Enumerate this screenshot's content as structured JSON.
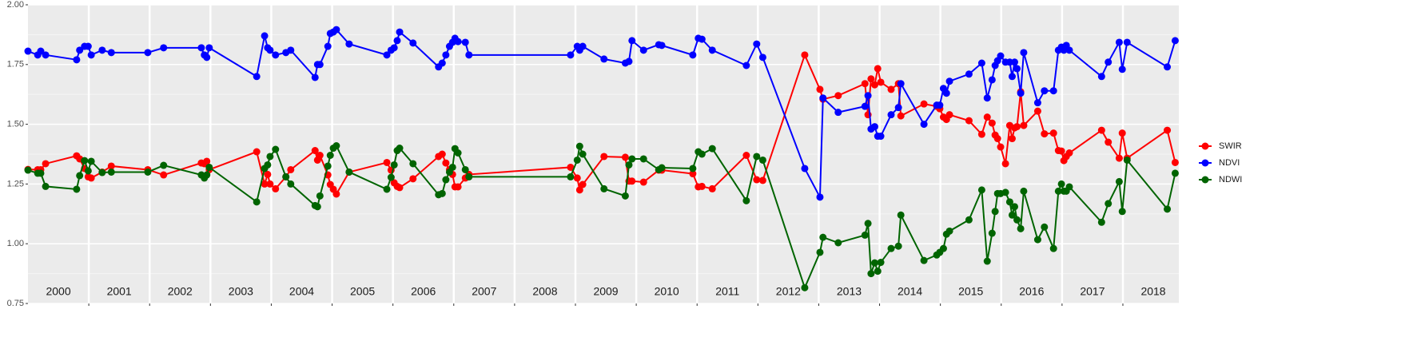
{
  "chart_data": {
    "type": "line",
    "x": [
      2000.0,
      2000.16,
      2000.21,
      2000.29,
      2000.8,
      2000.85,
      2000.93,
      2000.99,
      2001.04,
      2001.22,
      2001.37,
      2001.97,
      2002.23,
      2002.85,
      2002.9,
      2002.94,
      2002.98,
      2003.76,
      2003.89,
      2003.94,
      2003.98,
      2004.07,
      2004.24,
      2004.32,
      2004.72,
      2004.76,
      2004.8,
      2004.93,
      2004.97,
      2005.02,
      2005.07,
      2005.28,
      2005.9,
      2005.97,
      2006.02,
      2006.07,
      2006.11,
      2006.33,
      2006.75,
      2006.81,
      2006.87,
      2006.93,
      2006.98,
      2007.02,
      2007.07,
      2007.19,
      2007.25,
      2008.92,
      2009.03,
      2009.07,
      2009.12,
      2009.47,
      2009.82,
      2009.88,
      2009.93,
      2010.12,
      2010.37,
      2010.42,
      2010.93,
      2011.02,
      2011.08,
      2011.25,
      2011.81,
      2011.98,
      2012.08,
      2012.77,
      2013.02,
      2013.07,
      2013.32,
      2013.76,
      2013.81,
      2013.86,
      2013.92,
      2013.97,
      2014.02,
      2014.19,
      2014.31,
      2014.35,
      2014.73,
      2014.94,
      2014.99,
      2015.05,
      2015.1,
      2015.15,
      2015.47,
      2015.68,
      2015.77,
      2015.85,
      2015.9,
      2015.94,
      2015.99,
      2016.07,
      2016.14,
      2016.18,
      2016.22,
      2016.26,
      2016.32,
      2016.37,
      2016.6,
      2016.71,
      2016.86,
      2016.94,
      2016.99,
      2017.03,
      2017.07,
      2017.12,
      2017.65,
      2017.76,
      2017.94,
      2017.99,
      2018.07,
      2018.73,
      2018.86
    ],
    "series": [
      {
        "name": "SWIR",
        "color": "#ff0000",
        "values": [
          1.311,
          1.31,
          1.31,
          1.335,
          1.368,
          1.355,
          1.315,
          1.28,
          1.275,
          1.3,
          1.325,
          1.31,
          1.288,
          1.338,
          1.335,
          1.345,
          1.31,
          1.385,
          1.25,
          1.29,
          1.25,
          1.23,
          1.28,
          1.31,
          1.39,
          1.35,
          1.37,
          1.288,
          1.248,
          1.228,
          1.208,
          1.3,
          1.34,
          1.308,
          1.255,
          1.24,
          1.235,
          1.272,
          1.365,
          1.375,
          1.338,
          1.31,
          1.29,
          1.238,
          1.238,
          1.275,
          1.29,
          1.32,
          1.275,
          1.225,
          1.248,
          1.365,
          1.362,
          1.262,
          1.262,
          1.258,
          1.308,
          1.308,
          1.293,
          1.238,
          1.24,
          1.23,
          1.37,
          1.268,
          1.265,
          1.79,
          1.646,
          1.605,
          1.62,
          1.67,
          1.54,
          1.69,
          1.665,
          1.733,
          1.676,
          1.646,
          1.67,
          1.535,
          1.585,
          1.575,
          1.565,
          1.53,
          1.52,
          1.54,
          1.515,
          1.458,
          1.53,
          1.505,
          1.455,
          1.44,
          1.405,
          1.335,
          1.495,
          1.44,
          1.485,
          1.49,
          1.636,
          1.495,
          1.555,
          1.46,
          1.463,
          1.39,
          1.388,
          1.348,
          1.365,
          1.38,
          1.475,
          1.425,
          1.358,
          1.463,
          1.358,
          1.475,
          1.34
        ]
      },
      {
        "name": "NDVI",
        "color": "#0000ff",
        "values": [
          1.806,
          1.79,
          1.806,
          1.79,
          1.77,
          1.81,
          1.826,
          1.826,
          1.79,
          1.81,
          1.8,
          1.8,
          1.82,
          1.82,
          1.79,
          1.78,
          1.82,
          1.7,
          1.87,
          1.82,
          1.81,
          1.79,
          1.8,
          1.81,
          1.696,
          1.75,
          1.75,
          1.826,
          1.88,
          1.886,
          1.896,
          1.836,
          1.79,
          1.81,
          1.82,
          1.85,
          1.886,
          1.84,
          1.74,
          1.756,
          1.79,
          1.826,
          1.843,
          1.86,
          1.846,
          1.843,
          1.79,
          1.79,
          1.826,
          1.81,
          1.826,
          1.773,
          1.756,
          1.763,
          1.85,
          1.81,
          1.833,
          1.83,
          1.79,
          1.86,
          1.856,
          1.81,
          1.746,
          1.836,
          1.78,
          1.315,
          1.195,
          1.61,
          1.55,
          1.575,
          1.62,
          1.48,
          1.49,
          1.45,
          1.45,
          1.54,
          1.57,
          1.67,
          1.5,
          1.58,
          1.58,
          1.65,
          1.63,
          1.68,
          1.71,
          1.756,
          1.61,
          1.686,
          1.746,
          1.766,
          1.786,
          1.76,
          1.76,
          1.7,
          1.76,
          1.733,
          1.63,
          1.8,
          1.59,
          1.64,
          1.64,
          1.81,
          1.823,
          1.81,
          1.83,
          1.81,
          1.7,
          1.76,
          1.843,
          1.73,
          1.843,
          1.74,
          1.85
        ]
      },
      {
        "name": "NDWI",
        "color": "#006400",
        "values": [
          1.308,
          1.295,
          1.295,
          1.24,
          1.228,
          1.285,
          1.348,
          1.305,
          1.345,
          1.298,
          1.3,
          1.3,
          1.328,
          1.288,
          1.275,
          1.288,
          1.32,
          1.175,
          1.315,
          1.33,
          1.365,
          1.395,
          1.28,
          1.25,
          1.16,
          1.155,
          1.2,
          1.325,
          1.37,
          1.4,
          1.41,
          1.3,
          1.228,
          1.278,
          1.33,
          1.39,
          1.4,
          1.335,
          1.205,
          1.21,
          1.268,
          1.3,
          1.32,
          1.398,
          1.38,
          1.31,
          1.28,
          1.28,
          1.35,
          1.408,
          1.375,
          1.23,
          1.2,
          1.33,
          1.355,
          1.355,
          1.31,
          1.318,
          1.315,
          1.385,
          1.375,
          1.398,
          1.18,
          1.365,
          1.35,
          0.816,
          0.964,
          1.027,
          1.004,
          1.036,
          1.085,
          0.875,
          0.92,
          0.885,
          0.922,
          0.98,
          0.99,
          1.12,
          0.93,
          0.953,
          0.964,
          0.98,
          1.04,
          1.053,
          1.1,
          1.225,
          0.927,
          1.044,
          1.135,
          1.21,
          1.21,
          1.215,
          1.175,
          1.12,
          1.155,
          1.1,
          1.063,
          1.22,
          1.017,
          1.07,
          0.98,
          1.22,
          1.25,
          1.22,
          1.22,
          1.238,
          1.09,
          1.168,
          1.26,
          1.135,
          1.35,
          1.145,
          1.295
        ]
      }
    ],
    "xlim": [
      2000,
      2018.92
    ],
    "xticks": [
      {
        "value": 2000.5,
        "label": "2000"
      },
      {
        "value": 2001.5,
        "label": "2001"
      },
      {
        "value": 2002.5,
        "label": "2002"
      },
      {
        "value": 2003.5,
        "label": "2003"
      },
      {
        "value": 2004.5,
        "label": "2004"
      },
      {
        "value": 2005.5,
        "label": "2005"
      },
      {
        "value": 2006.5,
        "label": "2006"
      },
      {
        "value": 2007.5,
        "label": "2007"
      },
      {
        "value": 2008.5,
        "label": "2008"
      },
      {
        "value": 2009.5,
        "label": "2009"
      },
      {
        "value": 2010.5,
        "label": "2010"
      },
      {
        "value": 2011.5,
        "label": "2011"
      },
      {
        "value": 2012.5,
        "label": "2012"
      },
      {
        "value": 2013.5,
        "label": "2013"
      },
      {
        "value": 2014.5,
        "label": "2014"
      },
      {
        "value": 2015.5,
        "label": "2015"
      },
      {
        "value": 2016.5,
        "label": "2016"
      },
      {
        "value": 2017.5,
        "label": "2017"
      },
      {
        "value": 2018.5,
        "label": "2018"
      }
    ],
    "year_boundaries": [
      2001,
      2002,
      2003,
      2004,
      2005,
      2006,
      2007,
      2008,
      2009,
      2010,
      2011,
      2012,
      2013,
      2014,
      2015,
      2016,
      2017,
      2018
    ],
    "ylim": [
      0.75,
      2.0
    ],
    "yticks": [
      0.75,
      {
        "value": 1.0,
        "label": "1.00"
      },
      1.25,
      {
        "value": 1.5,
        "label": "1.50"
      },
      1.75,
      {
        "value": 2.0,
        "label": "2.00"
      }
    ],
    "grid": true,
    "legend": "right"
  }
}
